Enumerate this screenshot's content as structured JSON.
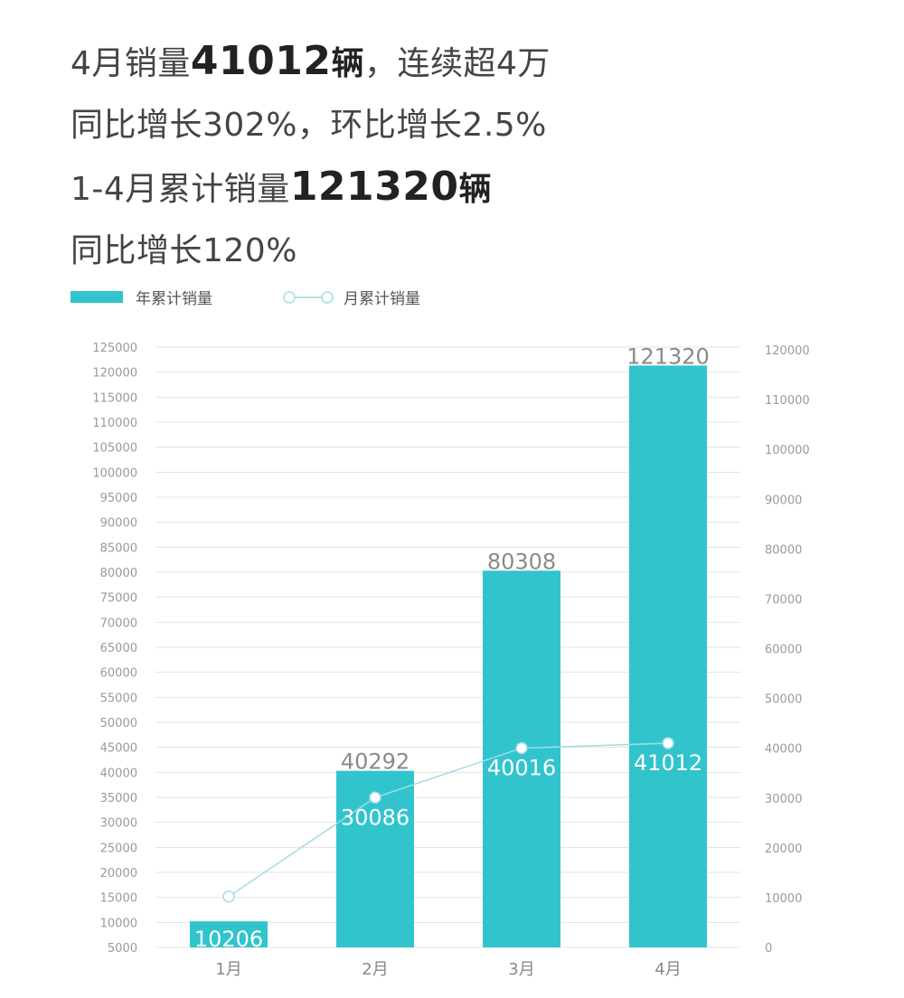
{
  "headline": {
    "line1": {
      "pre": "4月销量",
      "big": "41012",
      "unit": "辆",
      "post": "，连续超4万"
    },
    "line2": "同比增长302%，环比增长2.5%",
    "line3": {
      "pre": "1-4月累计销量",
      "big": "121320",
      "unit": "辆"
    },
    "line4": "同比增长120%"
  },
  "colors": {
    "bar": "#31c4cd",
    "line": "#9fdde1",
    "marker": "#ffffff",
    "grid": "#e3e3e3"
  },
  "chart_data": {
    "type": "bar",
    "categories": [
      "1月",
      "2月",
      "3月",
      "4月"
    ],
    "series": [
      {
        "name": "年累计销量",
        "type": "bar",
        "axis": "left",
        "values": [
          10206,
          40292,
          80308,
          121320
        ],
        "data_labels": [
          "10206",
          "40292",
          "80308",
          "121320"
        ]
      },
      {
        "name": "月累计销量",
        "type": "line",
        "axis": "right",
        "values": [
          10206,
          30086,
          40016,
          41012
        ],
        "data_labels": [
          "",
          "30086",
          "40016",
          "41012"
        ]
      }
    ],
    "left_axis": {
      "min": 5000,
      "max": 125000,
      "ticks": [
        "125000",
        "120000",
        "115000",
        "110000",
        "105000",
        "100000",
        "95000",
        "90000",
        "85000",
        "80000",
        "75000",
        "70000",
        "65000",
        "60000",
        "55000",
        "50000",
        "45000",
        "40000",
        "35000",
        "30000",
        "25000",
        "20000",
        "15000",
        "10000",
        "5000"
      ]
    },
    "right_axis": {
      "min": 0,
      "max": 120000,
      "ticks": [
        "120000",
        "110000",
        "100000",
        "90000",
        "80000",
        "70000",
        "60000",
        "50000",
        "40000",
        "30000",
        "20000",
        "10000",
        "0"
      ]
    },
    "grid": true,
    "legend_position": "top-left"
  }
}
